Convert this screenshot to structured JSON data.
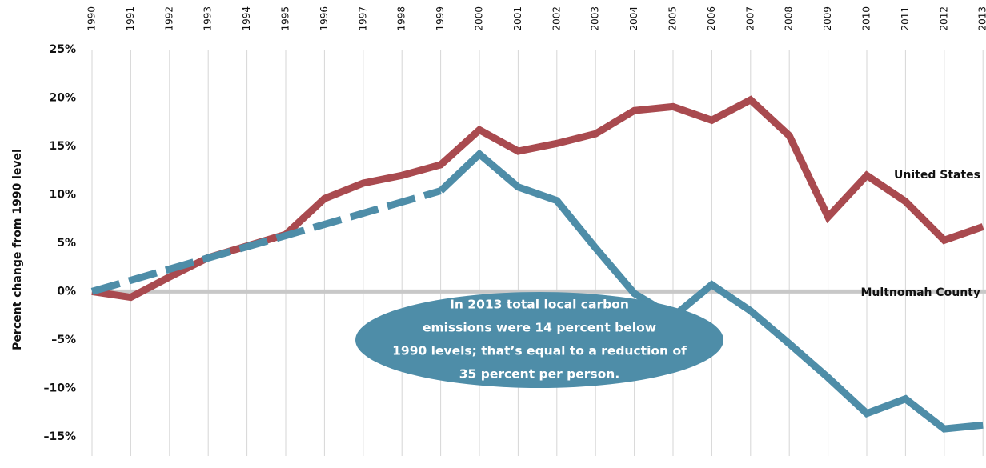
{
  "chart_data": {
    "type": "line",
    "y_label": "Percent change from 1990 level",
    "categories": [
      "1990",
      "1991",
      "1992",
      "1993",
      "1994",
      "1995",
      "1996",
      "1997",
      "1998",
      "1999",
      "2000",
      "2001",
      "2002",
      "2003",
      "2004",
      "2005",
      "2006",
      "2007",
      "2008",
      "2009",
      "2010",
      "2011",
      "2012",
      "2013"
    ],
    "series": [
      {
        "name": "United States",
        "color": "#a94a4f",
        "values": [
          0,
          -0.6,
          1.5,
          3.5,
          4.7,
          5.9,
          9.6,
          11.2,
          12.0,
          13.1,
          16.7,
          14.5,
          15.3,
          16.3,
          18.7,
          19.1,
          17.7,
          19.8,
          16.1,
          7.7,
          12.0,
          9.3,
          5.3,
          6.7
        ]
      },
      {
        "name": "Multnomah County",
        "color": "#4e8da8",
        "gap_style": "dashed",
        "values": [
          0,
          null,
          null,
          null,
          null,
          null,
          null,
          null,
          null,
          10.4,
          14.2,
          10.8,
          9.4,
          4.5,
          -0.2,
          -2.6,
          0.7,
          -2.0,
          -5.4,
          -8.9,
          -12.6,
          -11.1,
          -14.2,
          -13.8
        ]
      }
    ],
    "ylim": [
      -17,
      25
    ],
    "yticks": [
      {
        "value": 25,
        "label": "25%"
      },
      {
        "value": 20,
        "label": "20%"
      },
      {
        "value": 15,
        "label": "15%"
      },
      {
        "value": 10,
        "label": "10%"
      },
      {
        "value": 5,
        "label": "5%"
      },
      {
        "value": 0,
        "label": "0%"
      },
      {
        "value": -5,
        "label": "–5%"
      },
      {
        "value": -10,
        "label": "–10%"
      },
      {
        "value": -15,
        "label": "–15%"
      }
    ],
    "zero_line": true,
    "grid": "vertical",
    "annotation": [
      "In 2013 total local carbon",
      "emissions were 14 percent below",
      "1990 levels; that’s equal to a reduction of",
      "35 percent per person."
    ]
  }
}
